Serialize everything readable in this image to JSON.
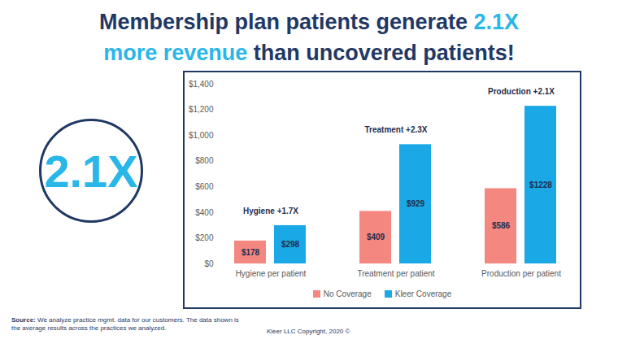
{
  "chart_data": {
    "type": "bar",
    "title": [
      "Membership plan patients generate 2.1X",
      "more revenue than uncovered patients!"
    ],
    "title_highlights": [
      "2.1X",
      "more revenue"
    ],
    "callout": "2.1X",
    "categories": [
      "Hygiene per patient",
      "Treatment per patient",
      "Production per patient"
    ],
    "series": [
      {
        "name": "No Coverage",
        "color": "#f4877f",
        "values": [
          178,
          409,
          586
        ],
        "value_labels": [
          "$178",
          "$409",
          "$586"
        ]
      },
      {
        "name": "Kleer Coverage",
        "color": "#1aa9e6",
        "values": [
          298,
          929,
          1228
        ],
        "value_labels": [
          "$298",
          "$929",
          "$1228"
        ]
      }
    ],
    "ylim": [
      0,
      1400
    ],
    "yticks": [
      {
        "value": 0,
        "label": "$0"
      },
      {
        "value": 200,
        "label": "$200"
      },
      {
        "value": 400,
        "label": "$400"
      },
      {
        "value": 600,
        "label": "$600"
      },
      {
        "value": 800,
        "label": "$800"
      },
      {
        "value": 1000,
        "label": "$1,000"
      },
      {
        "value": 1200,
        "label": "$1,200"
      },
      {
        "value": 1400,
        "label": "$1,400"
      }
    ],
    "grid": false,
    "data_labels": true,
    "legend": "bottom",
    "annotations": [
      {
        "category": "Hygiene per patient",
        "text": "Hygiene +1.7X"
      },
      {
        "category": "Treatment per patient",
        "text": "Treatment +2.3X"
      },
      {
        "category": "Production per patient",
        "text": "Production +2.1X"
      }
    ],
    "source_label": "Source:",
    "source": "We analyze practice mgmt. data for our customers. The data shown is the average results across the practices we analyzed.",
    "copyright": "Kleer LLC Copyright, 2020 ©"
  }
}
